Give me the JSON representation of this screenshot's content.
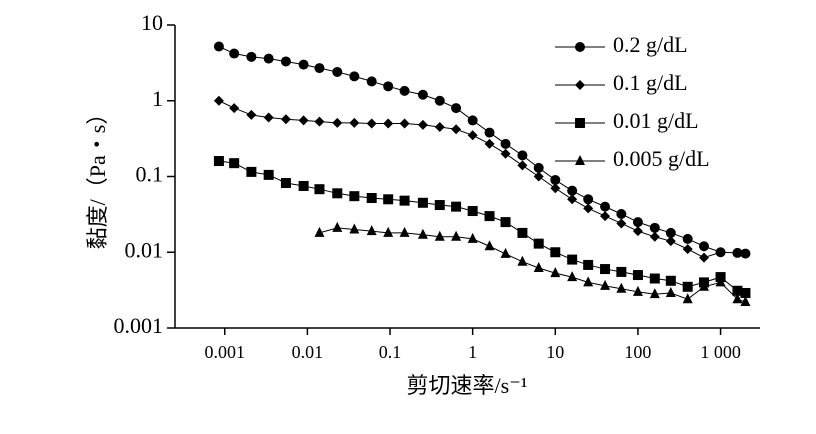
{
  "chart_data": {
    "type": "line",
    "xlabel": "剪切速率/s⁻¹",
    "ylabel": "黏度/（Pa・s）",
    "xscale": "log",
    "yscale": "log",
    "xlim": [
      0.00025,
      3000
    ],
    "ylim": [
      0.001,
      10
    ],
    "xticks": [
      0.001,
      0.01,
      0.1,
      1,
      10,
      100,
      {
        "value": 1000,
        "label": "1 000"
      }
    ],
    "yticks": [
      0.001,
      0.01,
      0.1,
      1,
      10
    ],
    "legend": "upper right",
    "series": [
      {
        "name": "0.2 g/dL",
        "color": "#000000",
        "marker": "circle",
        "x": [
          0.00085,
          0.0013,
          0.0021,
          0.0034,
          0.0055,
          0.009,
          0.014,
          0.023,
          0.037,
          0.06,
          0.095,
          0.15,
          0.25,
          0.4,
          0.63,
          1,
          1.6,
          2.5,
          4,
          6.3,
          10,
          16,
          25,
          40,
          63,
          100,
          160,
          250,
          400,
          630,
          1000,
          1600,
          2000
        ],
        "values": [
          5.2,
          4.2,
          3.8,
          3.6,
          3.3,
          3.0,
          2.7,
          2.4,
          2.1,
          1.8,
          1.55,
          1.35,
          1.2,
          1.0,
          0.8,
          0.55,
          0.38,
          0.27,
          0.19,
          0.13,
          0.09,
          0.065,
          0.05,
          0.04,
          0.032,
          0.025,
          0.021,
          0.018,
          0.015,
          0.012,
          0.01,
          0.0098,
          0.0096
        ]
      },
      {
        "name": "0.1 g/dL",
        "color": "#000000",
        "marker": "diamond",
        "x": [
          0.00085,
          0.0013,
          0.0021,
          0.0034,
          0.0055,
          0.009,
          0.014,
          0.023,
          0.037,
          0.06,
          0.095,
          0.15,
          0.25,
          0.4,
          0.63,
          1,
          1.6,
          2.5,
          4,
          6.3,
          10,
          16,
          25,
          40,
          63,
          100,
          160,
          250,
          400,
          630,
          1000
        ],
        "values": [
          1.0,
          0.8,
          0.65,
          0.6,
          0.57,
          0.55,
          0.53,
          0.51,
          0.51,
          0.5,
          0.5,
          0.5,
          0.48,
          0.45,
          0.42,
          0.35,
          0.27,
          0.2,
          0.14,
          0.1,
          0.07,
          0.05,
          0.038,
          0.03,
          0.024,
          0.019,
          0.016,
          0.014,
          0.011,
          0.0085,
          0.01
        ]
      },
      {
        "name": "0.01 g/dL",
        "color": "#000000",
        "marker": "square",
        "x": [
          0.00085,
          0.0013,
          0.0021,
          0.0034,
          0.0055,
          0.009,
          0.014,
          0.023,
          0.037,
          0.06,
          0.095,
          0.15,
          0.25,
          0.4,
          0.63,
          1,
          1.6,
          2.5,
          4,
          6.3,
          10,
          16,
          25,
          40,
          63,
          100,
          160,
          250,
          400,
          630,
          1000,
          1600,
          2000
        ],
        "values": [
          0.16,
          0.15,
          0.115,
          0.105,
          0.082,
          0.075,
          0.068,
          0.06,
          0.055,
          0.052,
          0.05,
          0.048,
          0.045,
          0.042,
          0.04,
          0.035,
          0.03,
          0.025,
          0.018,
          0.013,
          0.01,
          0.008,
          0.0068,
          0.006,
          0.0055,
          0.005,
          0.0045,
          0.0042,
          0.0035,
          0.004,
          0.0047,
          0.0031,
          0.0029
        ]
      },
      {
        "name": "0.005 g/dL",
        "color": "#000000",
        "marker": "triangle",
        "x": [
          0.014,
          0.023,
          0.037,
          0.06,
          0.095,
          0.15,
          0.25,
          0.4,
          0.63,
          1,
          1.6,
          2.5,
          4,
          6.3,
          10,
          16,
          25,
          40,
          63,
          100,
          160,
          250,
          400,
          630,
          1000,
          1600,
          2000
        ],
        "values": [
          0.018,
          0.021,
          0.02,
          0.019,
          0.018,
          0.018,
          0.017,
          0.016,
          0.016,
          0.015,
          0.012,
          0.0095,
          0.0075,
          0.0062,
          0.0053,
          0.0047,
          0.004,
          0.0036,
          0.0033,
          0.003,
          0.0028,
          0.0029,
          0.0024,
          0.0035,
          0.004,
          0.0024,
          0.0022
        ]
      }
    ]
  }
}
